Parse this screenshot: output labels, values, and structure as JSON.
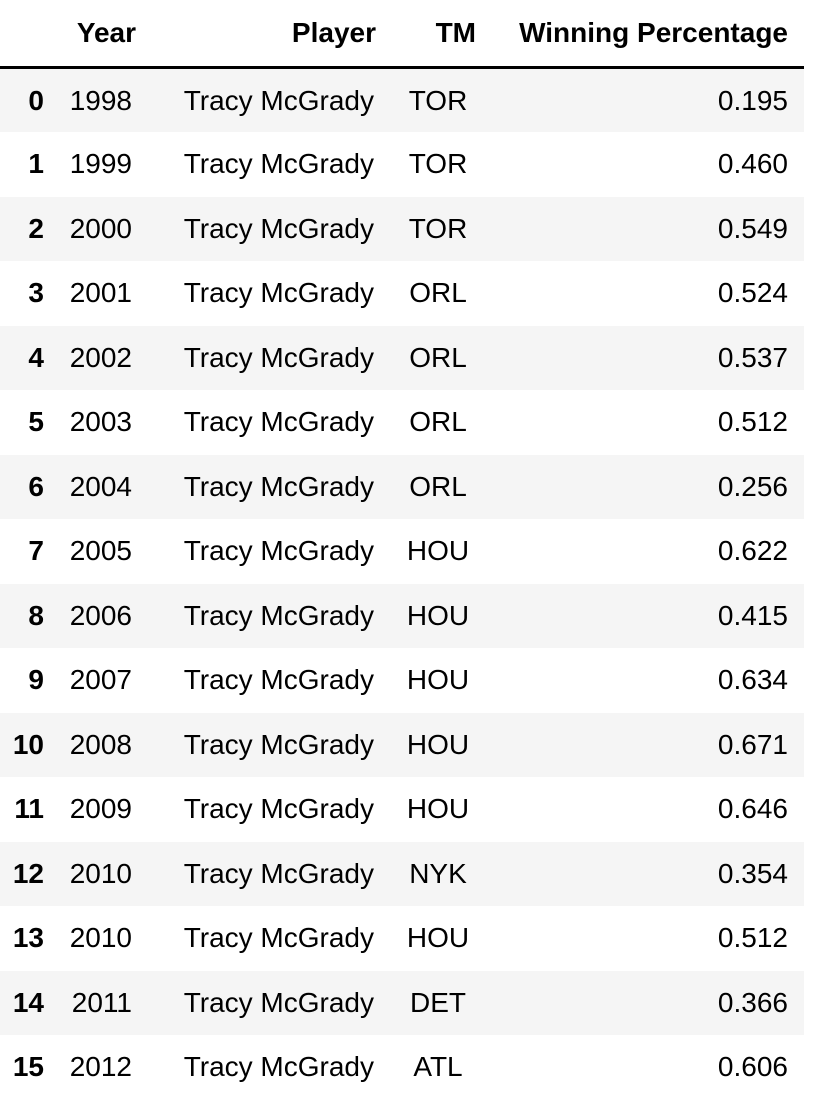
{
  "table": {
    "columns": [
      "",
      "Year",
      "Player",
      "TM",
      "Winning Percentage"
    ],
    "rows": [
      {
        "index": "0",
        "year": "1998",
        "player": "Tracy McGrady",
        "tm": "TOR",
        "wp": "0.195"
      },
      {
        "index": "1",
        "year": "1999",
        "player": "Tracy McGrady",
        "tm": "TOR",
        "wp": "0.460"
      },
      {
        "index": "2",
        "year": "2000",
        "player": "Tracy McGrady",
        "tm": "TOR",
        "wp": "0.549"
      },
      {
        "index": "3",
        "year": "2001",
        "player": "Tracy McGrady",
        "tm": "ORL",
        "wp": "0.524"
      },
      {
        "index": "4",
        "year": "2002",
        "player": "Tracy McGrady",
        "tm": "ORL",
        "wp": "0.537"
      },
      {
        "index": "5",
        "year": "2003",
        "player": "Tracy McGrady",
        "tm": "ORL",
        "wp": "0.512"
      },
      {
        "index": "6",
        "year": "2004",
        "player": "Tracy McGrady",
        "tm": "ORL",
        "wp": "0.256"
      },
      {
        "index": "7",
        "year": "2005",
        "player": "Tracy McGrady",
        "tm": "HOU",
        "wp": "0.622"
      },
      {
        "index": "8",
        "year": "2006",
        "player": "Tracy McGrady",
        "tm": "HOU",
        "wp": "0.415"
      },
      {
        "index": "9",
        "year": "2007",
        "player": "Tracy McGrady",
        "tm": "HOU",
        "wp": "0.634"
      },
      {
        "index": "10",
        "year": "2008",
        "player": "Tracy McGrady",
        "tm": "HOU",
        "wp": "0.671"
      },
      {
        "index": "11",
        "year": "2009",
        "player": "Tracy McGrady",
        "tm": "HOU",
        "wp": "0.646"
      },
      {
        "index": "12",
        "year": "2010",
        "player": "Tracy McGrady",
        "tm": "NYK",
        "wp": "0.354"
      },
      {
        "index": "13",
        "year": "2010",
        "player": "Tracy McGrady",
        "tm": "HOU",
        "wp": "0.512"
      },
      {
        "index": "14",
        "year": "2011",
        "player": "Tracy McGrady",
        "tm": "DET",
        "wp": "0.366"
      },
      {
        "index": "15",
        "year": "2012",
        "player": "Tracy McGrady",
        "tm": "ATL",
        "wp": "0.606"
      }
    ]
  }
}
